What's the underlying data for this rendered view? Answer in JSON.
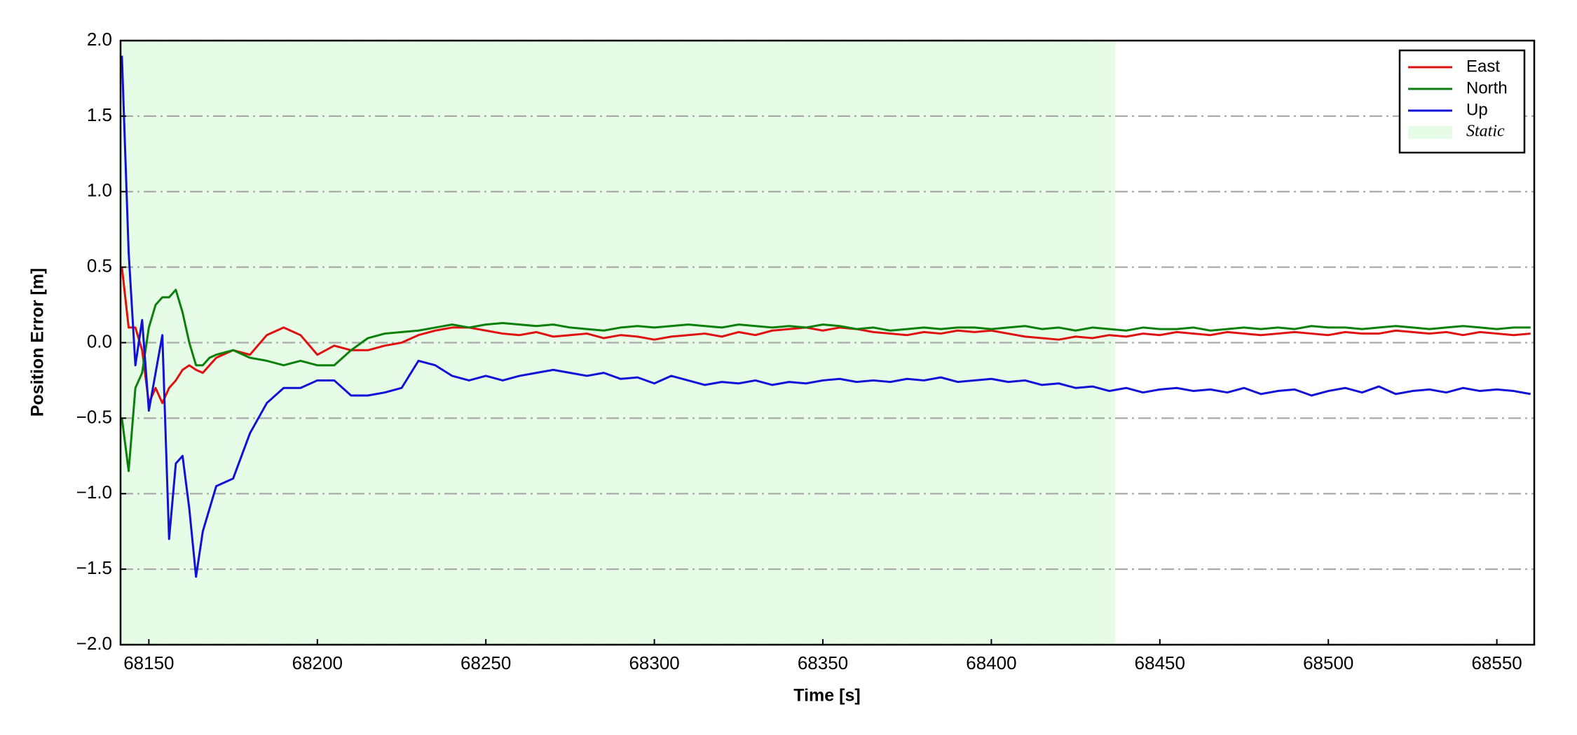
{
  "chart_data": {
    "type": "line",
    "x_label": "Time [s]",
    "y_label": "Position Error [m]",
    "xlim": [
      68141.6,
      68561.1
    ],
    "ylim": [
      -2,
      2
    ],
    "xticks": [
      68150,
      68200,
      68250,
      68300,
      68350,
      68400,
      68450,
      68500,
      68550
    ],
    "yticks": [
      {
        "value": -2,
        "label": "−2.0"
      },
      {
        "value": -1.5,
        "label": "−1.5"
      },
      {
        "value": -1,
        "label": "−1.0"
      },
      {
        "value": -0.5,
        "label": "−0.5"
      },
      {
        "value": 0,
        "label": "0.0"
      },
      0.5,
      {
        "value": 1,
        "label": "1.0"
      },
      1.5,
      {
        "value": 2,
        "label": "2.0"
      }
    ],
    "grid": true,
    "legend_position": "upper right",
    "shaded_region": {
      "label": "Static",
      "xrange": [
        68141.6,
        68436.8
      ],
      "color": "#e6fce6"
    },
    "x": [
      68142,
      68144,
      68146,
      68148,
      68150,
      68152,
      68154,
      68156,
      68158,
      68160,
      68162,
      68164,
      68166,
      68168,
      68170,
      68175,
      68180,
      68185,
      68190,
      68195,
      68200,
      68205,
      68210,
      68215,
      68220,
      68225,
      68230,
      68235,
      68240,
      68245,
      68250,
      68255,
      68260,
      68265,
      68270,
      68275,
      68280,
      68285,
      68290,
      68295,
      68300,
      68305,
      68310,
      68315,
      68320,
      68325,
      68330,
      68335,
      68340,
      68345,
      68350,
      68355,
      68360,
      68365,
      68370,
      68375,
      68380,
      68385,
      68390,
      68395,
      68400,
      68405,
      68410,
      68415,
      68420,
      68425,
      68430,
      68435,
      68440,
      68445,
      68450,
      68455,
      68460,
      68465,
      68470,
      68475,
      68480,
      68485,
      68490,
      68495,
      68500,
      68505,
      68510,
      68515,
      68520,
      68525,
      68530,
      68535,
      68540,
      68545,
      68550,
      68555,
      68560
    ],
    "series": [
      {
        "name": "East",
        "color": "#e01010",
        "values": [
          0.5,
          0.1,
          0.1,
          -0.05,
          -0.4,
          -0.3,
          -0.4,
          -0.3,
          -0.25,
          -0.18,
          -0.15,
          -0.18,
          -0.2,
          -0.15,
          -0.1,
          -0.05,
          -0.08,
          0.05,
          0.1,
          0.05,
          -0.08,
          -0.02,
          -0.05,
          -0.05,
          -0.02,
          0.0,
          0.05,
          0.08,
          0.1,
          0.1,
          0.08,
          0.06,
          0.05,
          0.07,
          0.04,
          0.05,
          0.06,
          0.03,
          0.05,
          0.04,
          0.02,
          0.04,
          0.05,
          0.06,
          0.04,
          0.07,
          0.05,
          0.08,
          0.09,
          0.1,
          0.08,
          0.1,
          0.09,
          0.07,
          0.06,
          0.05,
          0.07,
          0.06,
          0.08,
          0.07,
          0.08,
          0.06,
          0.04,
          0.03,
          0.02,
          0.04,
          0.03,
          0.05,
          0.04,
          0.06,
          0.05,
          0.07,
          0.06,
          0.05,
          0.07,
          0.06,
          0.05,
          0.06,
          0.07,
          0.06,
          0.05,
          0.07,
          0.06,
          0.06,
          0.08,
          0.07,
          0.06,
          0.07,
          0.05,
          0.07,
          0.06,
          0.05,
          0.06
        ]
      },
      {
        "name": "North",
        "color": "#0a800a",
        "values": [
          -0.5,
          -0.85,
          -0.3,
          -0.2,
          0.1,
          0.25,
          0.3,
          0.3,
          0.35,
          0.2,
          0.0,
          -0.15,
          -0.15,
          -0.1,
          -0.08,
          -0.05,
          -0.1,
          -0.12,
          -0.15,
          -0.12,
          -0.15,
          -0.15,
          -0.05,
          0.03,
          0.06,
          0.07,
          0.08,
          0.1,
          0.12,
          0.1,
          0.12,
          0.13,
          0.12,
          0.11,
          0.12,
          0.1,
          0.09,
          0.08,
          0.1,
          0.11,
          0.1,
          0.11,
          0.12,
          0.11,
          0.1,
          0.12,
          0.11,
          0.1,
          0.11,
          0.1,
          0.12,
          0.11,
          0.09,
          0.1,
          0.08,
          0.09,
          0.1,
          0.09,
          0.1,
          0.1,
          0.09,
          0.1,
          0.11,
          0.09,
          0.1,
          0.08,
          0.1,
          0.09,
          0.08,
          0.1,
          0.09,
          0.09,
          0.1,
          0.08,
          0.09,
          0.1,
          0.09,
          0.1,
          0.09,
          0.11,
          0.1,
          0.1,
          0.09,
          0.1,
          0.11,
          0.1,
          0.09,
          0.1,
          0.11,
          0.1,
          0.09,
          0.1,
          0.1
        ]
      },
      {
        "name": "Up",
        "color": "#1010d8",
        "values": [
          1.9,
          0.6,
          -0.15,
          0.15,
          -0.45,
          -0.2,
          0.05,
          -1.3,
          -0.8,
          -0.75,
          -1.1,
          -1.55,
          -1.25,
          -1.1,
          -0.95,
          -0.9,
          -0.6,
          -0.4,
          -0.3,
          -0.3,
          -0.25,
          -0.25,
          -0.35,
          -0.35,
          -0.33,
          -0.3,
          -0.12,
          -0.15,
          -0.22,
          -0.25,
          -0.22,
          -0.25,
          -0.22,
          -0.2,
          -0.18,
          -0.2,
          -0.22,
          -0.2,
          -0.24,
          -0.23,
          -0.27,
          -0.22,
          -0.25,
          -0.28,
          -0.26,
          -0.27,
          -0.25,
          -0.28,
          -0.26,
          -0.27,
          -0.25,
          -0.24,
          -0.26,
          -0.25,
          -0.26,
          -0.24,
          -0.25,
          -0.23,
          -0.26,
          -0.25,
          -0.24,
          -0.26,
          -0.25,
          -0.28,
          -0.27,
          -0.3,
          -0.29,
          -0.32,
          -0.3,
          -0.33,
          -0.31,
          -0.3,
          -0.32,
          -0.31,
          -0.33,
          -0.3,
          -0.34,
          -0.32,
          -0.31,
          -0.35,
          -0.32,
          -0.3,
          -0.33,
          -0.29,
          -0.34,
          -0.32,
          -0.31,
          -0.33,
          -0.3,
          -0.32,
          -0.31,
          -0.32,
          -0.34
        ]
      }
    ]
  }
}
